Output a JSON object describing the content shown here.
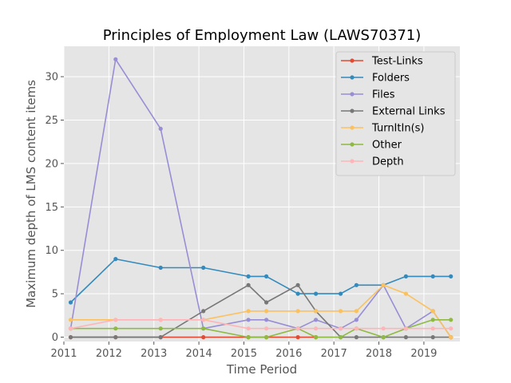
{
  "chart_data": {
    "type": "line",
    "title": "Principles of Employment Law (LAWS70371)",
    "xlabel": "Time Period",
    "ylabel": "Maximum depth of LMS content items",
    "xlim": [
      2011.0,
      2019.8
    ],
    "ylim": [
      -0.5,
      33.5
    ],
    "xticks": [
      2011,
      2012,
      2013,
      2014,
      2015,
      2016,
      2017,
      2018,
      2019
    ],
    "yticks": [
      0,
      5,
      10,
      15,
      20,
      25,
      30
    ],
    "grid": true,
    "legend_position": "top-right",
    "series": [
      {
        "name": "Test-Links",
        "color": "#E24A33",
        "x": [
          2011.15,
          2012.15,
          2013.15,
          2014.1,
          2015.1,
          2015.5,
          2016.2,
          2016.6
        ],
        "y": [
          0,
          0,
          0,
          0,
          0,
          0,
          0,
          0
        ]
      },
      {
        "name": "Folders",
        "color": "#348ABD",
        "x": [
          2011.15,
          2012.15,
          2013.15,
          2014.1,
          2015.1,
          2015.5,
          2016.2,
          2016.6,
          2017.15,
          2017.5,
          2018.1,
          2018.6,
          2019.2,
          2019.6
        ],
        "y": [
          4,
          9,
          8,
          8,
          7,
          7,
          5,
          5,
          5,
          6,
          6,
          7,
          7,
          7
        ]
      },
      {
        "name": "Files",
        "color": "#988ED5",
        "x": [
          2011.15,
          2012.15,
          2013.15,
          2014.1,
          2015.1,
          2015.5,
          2016.2,
          2016.6,
          2017.15,
          2017.5,
          2018.1,
          2018.6,
          2019.2,
          2019.6
        ],
        "y": [
          1,
          32,
          24,
          1,
          2,
          2,
          1,
          2,
          1,
          2,
          6,
          1,
          3,
          0
        ]
      },
      {
        "name": "External Links",
        "color": "#777777",
        "x": [
          2011.15,
          2012.15,
          2013.15,
          2014.1,
          2015.1,
          2015.5,
          2016.2,
          2016.6,
          2017.15,
          2017.5,
          2018.1,
          2018.6,
          2019.2,
          2019.6
        ],
        "y": [
          0,
          0,
          0,
          3,
          6,
          4,
          6,
          3,
          0,
          0,
          0,
          0,
          0,
          0
        ]
      },
      {
        "name": "TurnItIn(s)",
        "color": "#FBC15E",
        "x": [
          2011.15,
          2012.15,
          2013.15,
          2014.1,
          2015.1,
          2015.5,
          2016.2,
          2016.6,
          2017.15,
          2017.5,
          2018.1,
          2018.6,
          2019.2,
          2019.6
        ],
        "y": [
          2,
          2,
          2,
          2,
          3,
          3,
          3,
          3,
          3,
          3,
          6,
          5,
          3,
          0
        ]
      },
      {
        "name": "Other",
        "color": "#8EBA42",
        "x": [
          2011.15,
          2012.15,
          2013.15,
          2014.1,
          2015.1,
          2015.5,
          2016.2,
          2016.6,
          2017.15,
          2017.5,
          2018.1,
          2018.6,
          2019.2,
          2019.6
        ],
        "y": [
          1,
          1,
          1,
          1,
          0,
          0,
          1,
          0,
          0,
          1,
          0,
          1,
          2,
          2
        ]
      },
      {
        "name": "Depth",
        "color": "#FFB5B8",
        "x": [
          2011.15,
          2012.15,
          2013.15,
          2014.1,
          2015.1,
          2015.5,
          2016.2,
          2016.6,
          2017.15,
          2017.5,
          2018.1,
          2018.6,
          2019.2,
          2019.6
        ],
        "y": [
          1,
          2,
          2,
          2,
          1,
          1,
          1,
          1,
          1,
          1,
          1,
          1,
          1,
          1
        ]
      }
    ]
  }
}
